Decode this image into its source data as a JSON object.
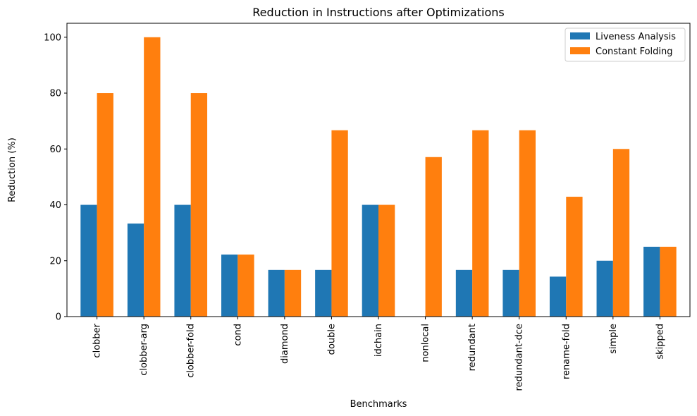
{
  "chart_data": {
    "type": "bar",
    "title": "Reduction in Instructions after Optimizations",
    "xlabel": "Benchmarks",
    "ylabel": "Reduction (%)",
    "categories": [
      "clobber",
      "clobber-arg",
      "clobber-fold",
      "cond",
      "diamond",
      "double",
      "idchain",
      "nonlocal",
      "redundant",
      "redundant-dce",
      "rename-fold",
      "simple",
      "skipped"
    ],
    "series": [
      {
        "name": "Liveness Analysis",
        "color": "#1f77b4",
        "values": [
          40,
          33.3,
          40,
          22.2,
          16.7,
          16.7,
          40,
          0,
          16.7,
          16.7,
          14.3,
          20,
          25
        ]
      },
      {
        "name": "Constant Folding",
        "color": "#ff7f0e",
        "values": [
          80,
          100,
          80,
          22.2,
          16.7,
          66.7,
          40,
          57.1,
          66.7,
          66.7,
          42.9,
          60,
          25
        ]
      }
    ],
    "ylim": [
      0,
      105
    ],
    "yticks": [
      0,
      20,
      40,
      60,
      80,
      100
    ],
    "grid": false,
    "legend_position": "top-right"
  }
}
